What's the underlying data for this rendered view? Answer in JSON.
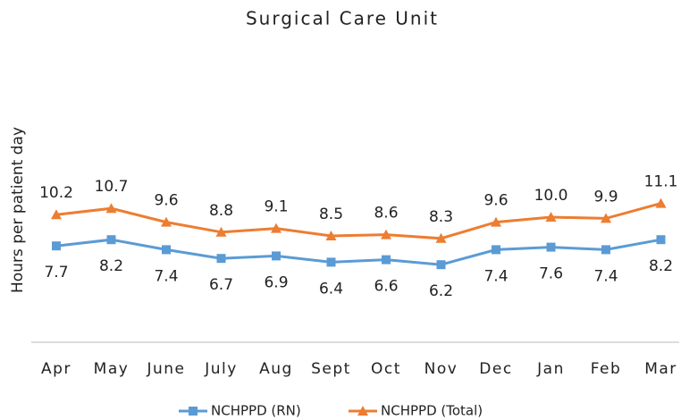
{
  "chart_data": {
    "type": "line",
    "title": "Surgical Care Unit",
    "y_label": "Hours per patient day",
    "categories": [
      "Apr",
      "May",
      "June",
      "July",
      "Aug",
      "Sept",
      "Oct",
      "Nov",
      "Dec",
      "Jan",
      "Feb",
      "Mar"
    ],
    "ylim": [
      0,
      20
    ],
    "series": [
      {
        "name": "NCHPPD (RN)",
        "color": "#5b9bd5",
        "marker": "square",
        "values": [
          7.7,
          8.2,
          7.4,
          6.7,
          6.9,
          6.4,
          6.6,
          6.2,
          7.4,
          7.6,
          7.4,
          8.2
        ]
      },
      {
        "name": "NCHPPD (Total)",
        "color": "#ed7d31",
        "marker": "triangle",
        "values": [
          10.2,
          10.7,
          9.6,
          8.8,
          9.1,
          8.5,
          8.6,
          8.3,
          9.6,
          10.0,
          9.9,
          11.1
        ],
        "value_labels": [
          "10.2",
          "10.7",
          "9.6",
          "8.8",
          "9.1",
          "8.5",
          "8.6",
          "8.3",
          "9.6",
          "10.0",
          "9.9",
          "11.1"
        ]
      }
    ],
    "legend": "bottom"
  }
}
